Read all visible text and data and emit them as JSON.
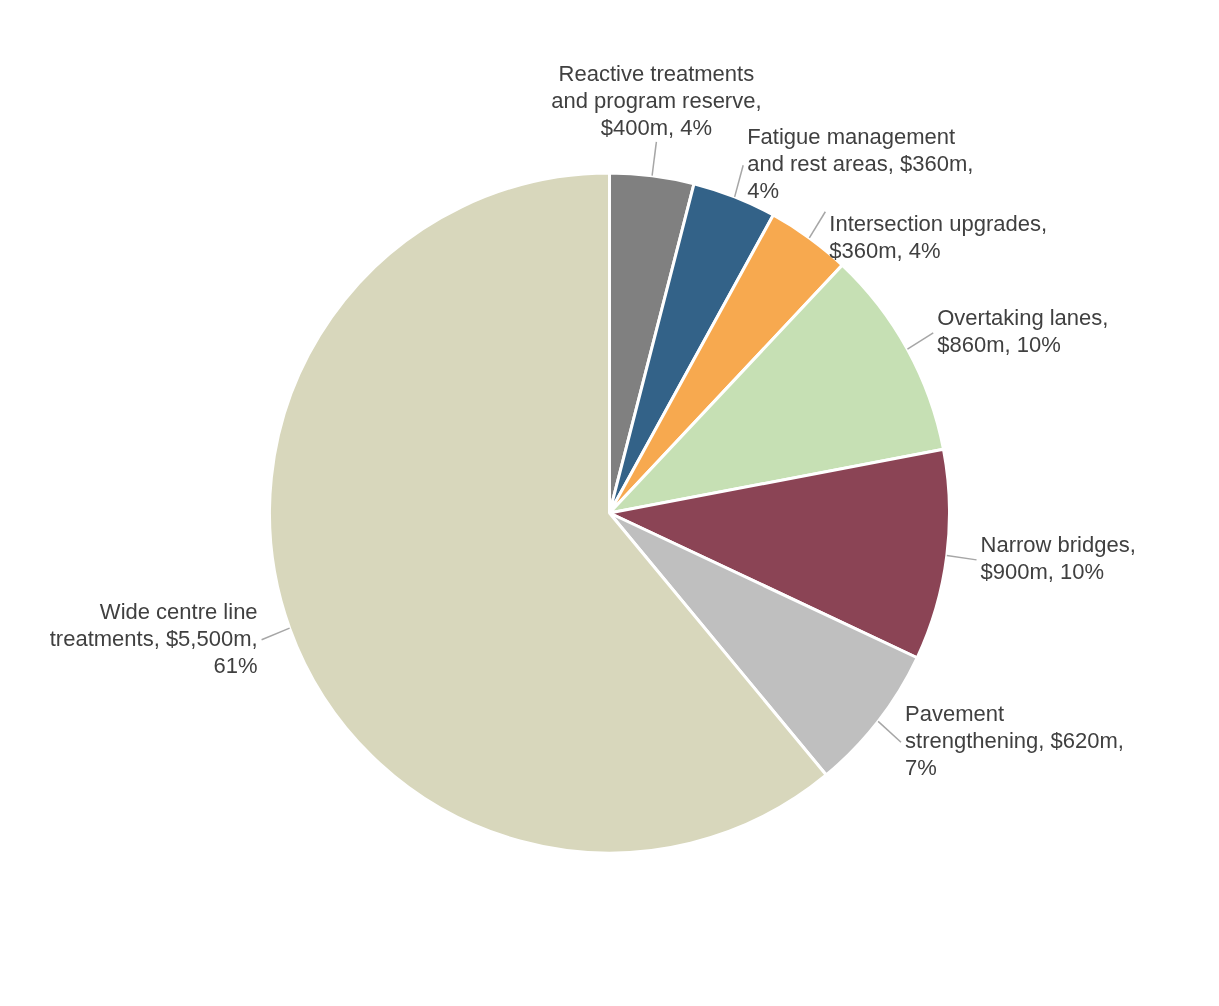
{
  "chart_data": {
    "type": "pie",
    "categories": [
      "Reactive treatments and program reserve, $400m, 4%",
      "Fatigue management and rest areas, $360m, 4%",
      "Intersection upgrades, $360m, 4%",
      "Overtaking lanes, $860m, 10%",
      "Narrow bridges, $900m, 10%",
      "Pavement strengthening, $620m, 7%",
      "Wide centre line treatments, $5,500m, 61%"
    ],
    "values": [
      4,
      4,
      4,
      10,
      10,
      7,
      61
    ],
    "colors": [
      "#808080",
      "#336288",
      "#f7a94f",
      "#c6e0b4",
      "#8b4455",
      "#bfbfbf",
      "#d8d7bc"
    ]
  }
}
